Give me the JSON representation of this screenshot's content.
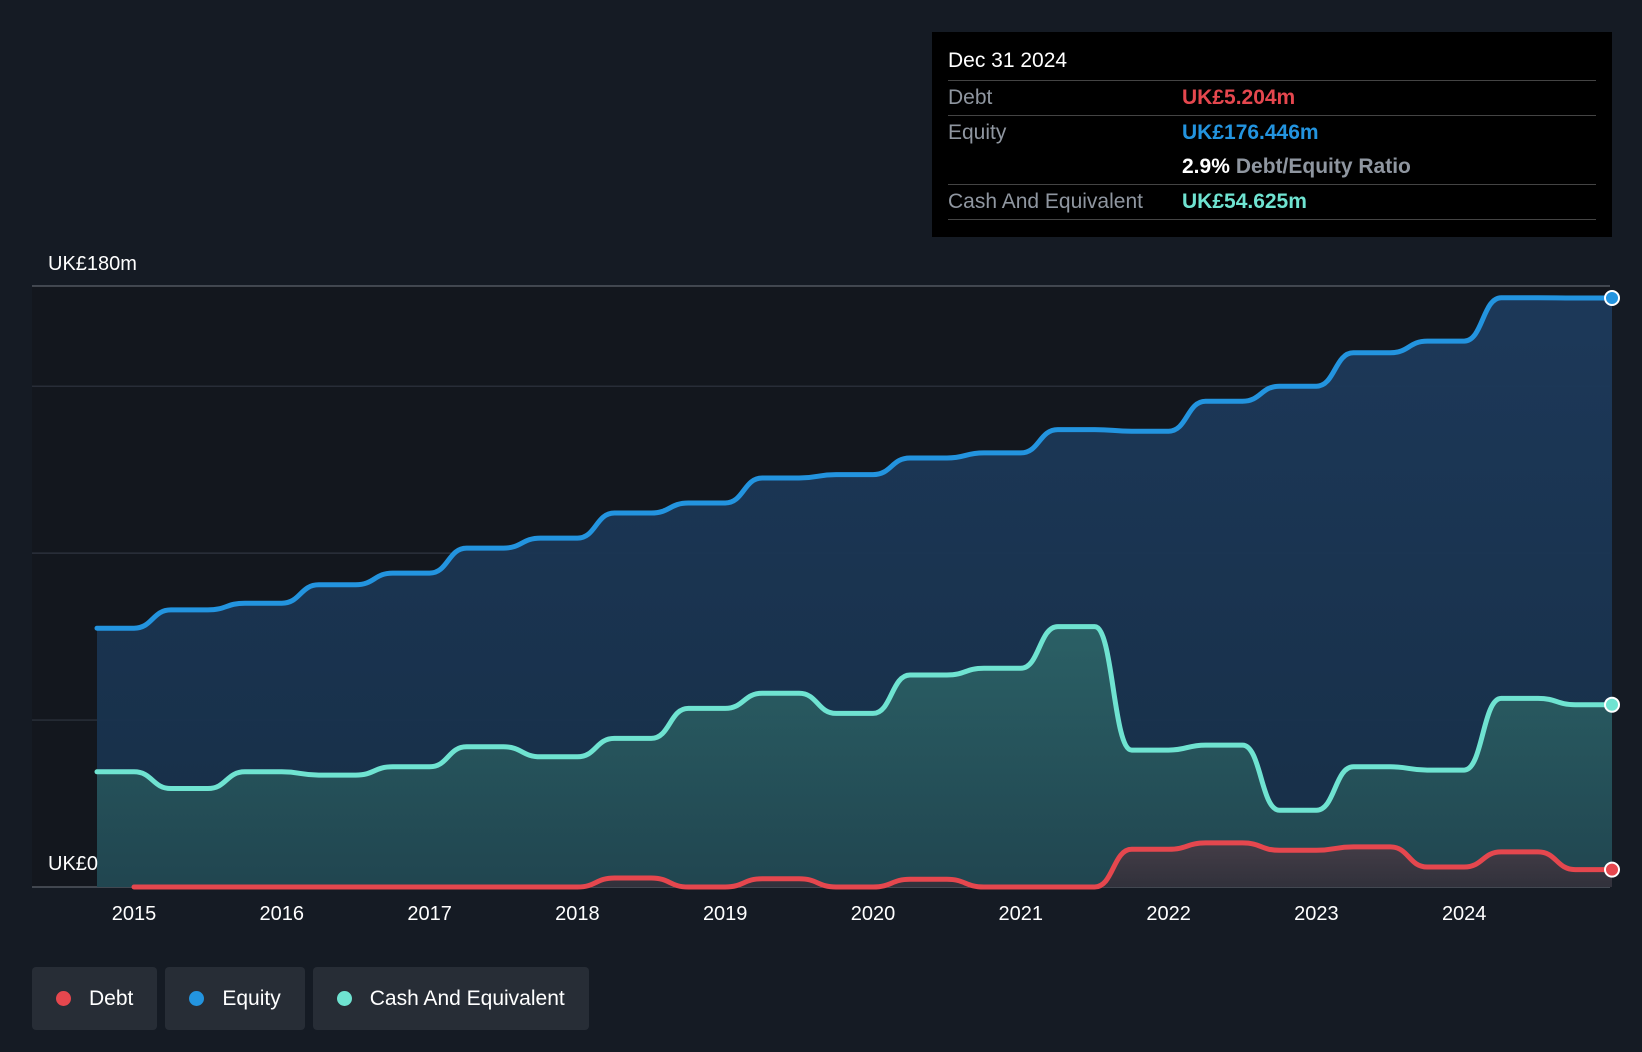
{
  "tooltip": {
    "date": "Dec 31 2024",
    "debt_label": "Debt",
    "debt_value": "UK£5.204m",
    "equity_label": "Equity",
    "equity_value": "UK£176.446m",
    "ratio_value": "2.9%",
    "ratio_label": "Debt/Equity Ratio",
    "cash_label": "Cash And Equivalent",
    "cash_value": "UK£54.625m"
  },
  "legend": [
    {
      "label": "Debt",
      "color": "#e5474e"
    },
    {
      "label": "Equity",
      "color": "#2394df"
    },
    {
      "label": "Cash And Equivalent",
      "color": "#6fe3d1"
    }
  ],
  "chart_data": {
    "type": "area",
    "ylabel_top": "UK£180m",
    "ylabel_bottom": "UK£0",
    "ylim": [
      0,
      180
    ],
    "xlim": [
      2014.75,
      2025.0
    ],
    "x_ticks": [
      2015,
      2016,
      2017,
      2018,
      2019,
      2020,
      2021,
      2022,
      2023,
      2024
    ],
    "grid": true,
    "gridlines": [
      0,
      50,
      100,
      150,
      180
    ],
    "colors": {
      "debt": "#e5474e",
      "equity": "#2394df",
      "cash": "#6fe3d1"
    },
    "series": [
      {
        "name": "Equity",
        "color": "#2394df",
        "x": [
          2014.75,
          2015.0,
          2015.25,
          2015.5,
          2015.75,
          2016.0,
          2016.25,
          2016.5,
          2016.75,
          2017.0,
          2017.25,
          2017.5,
          2017.75,
          2018.0,
          2018.25,
          2018.5,
          2018.75,
          2019.0,
          2019.25,
          2019.5,
          2019.75,
          2020.0,
          2020.25,
          2020.5,
          2020.75,
          2021.0,
          2021.25,
          2021.5,
          2021.75,
          2022.0,
          2022.25,
          2022.5,
          2022.75,
          2023.0,
          2023.25,
          2023.5,
          2023.75,
          2024.0,
          2024.25,
          2024.5,
          2024.75,
          2025.0
        ],
        "values": [
          77.5,
          77.5,
          83.0,
          83.0,
          85.0,
          85.0,
          90.5,
          90.5,
          94.0,
          94.0,
          101.5,
          101.5,
          104.5,
          104.5,
          112.0,
          112.0,
          115.0,
          115.0,
          122.5,
          122.5,
          123.5,
          123.5,
          128.5,
          128.5,
          130.0,
          130.0,
          137.0,
          137.0,
          136.5,
          136.5,
          145.5,
          145.5,
          150.0,
          150.0,
          160.0,
          160.0,
          163.5,
          163.5,
          176.5,
          176.5,
          176.4,
          176.4
        ]
      },
      {
        "name": "Cash And Equivalent",
        "color": "#6fe3d1",
        "x": [
          2014.75,
          2015.0,
          2015.25,
          2015.5,
          2015.75,
          2016.0,
          2016.25,
          2016.5,
          2016.75,
          2017.0,
          2017.25,
          2017.5,
          2017.75,
          2018.0,
          2018.25,
          2018.5,
          2018.75,
          2019.0,
          2019.25,
          2019.5,
          2019.75,
          2020.0,
          2020.25,
          2020.5,
          2020.75,
          2021.0,
          2021.25,
          2021.5,
          2021.75,
          2022.0,
          2022.25,
          2022.5,
          2022.75,
          2023.0,
          2023.25,
          2023.5,
          2023.75,
          2024.0,
          2024.25,
          2024.5,
          2024.75,
          2025.0
        ],
        "values": [
          34.5,
          34.5,
          29.5,
          29.5,
          34.5,
          34.5,
          33.5,
          33.5,
          36.0,
          36.0,
          42.0,
          42.0,
          39.0,
          39.0,
          44.5,
          44.5,
          53.5,
          53.5,
          58.0,
          58.0,
          52.0,
          52.0,
          63.5,
          63.5,
          65.5,
          65.5,
          78.0,
          78.0,
          41.0,
          41.0,
          42.5,
          42.5,
          23.0,
          23.0,
          36.0,
          36.0,
          35.0,
          35.0,
          56.5,
          56.5,
          54.6,
          54.6
        ]
      },
      {
        "name": "Debt",
        "color": "#e5474e",
        "x": [
          2015.0,
          2015.25,
          2015.5,
          2015.75,
          2016.0,
          2016.25,
          2016.5,
          2016.75,
          2017.0,
          2017.25,
          2017.5,
          2017.75,
          2018.0,
          2018.25,
          2018.5,
          2018.75,
          2019.0,
          2019.25,
          2019.5,
          2019.75,
          2020.0,
          2020.25,
          2020.5,
          2020.75,
          2021.0,
          2021.25,
          2021.5,
          2021.75,
          2022.0,
          2022.25,
          2022.5,
          2022.75,
          2023.0,
          2023.25,
          2023.5,
          2023.75,
          2024.0,
          2024.25,
          2024.5,
          2024.75,
          2025.0
        ],
        "values": [
          0,
          0,
          0,
          0,
          0,
          0,
          0,
          0,
          0,
          0,
          0,
          0,
          0,
          2.7,
          2.7,
          0,
          0,
          2.5,
          2.5,
          0,
          0,
          2.3,
          2.3,
          0,
          0,
          0,
          0,
          11.3,
          11.3,
          13.2,
          13.2,
          11.0,
          11.0,
          12.0,
          12.0,
          6.0,
          6.0,
          10.5,
          10.5,
          5.2,
          5.2
        ]
      }
    ]
  }
}
